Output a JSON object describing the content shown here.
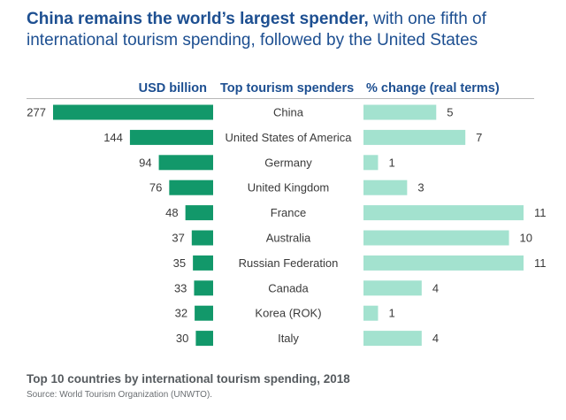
{
  "header": {
    "title_bold": "China remains the world’s largest spender,",
    "title_rest": " with one fifth of international tourism spending, followed by the United States"
  },
  "columns": {
    "spending": "USD billion",
    "country": "Top tourism spenders",
    "change": "% change (real terms)"
  },
  "colors": {
    "spending_bar": "#12986a",
    "change_bar": "#a3e2cf",
    "title": "#1d4f91",
    "text": "#3a3a3a"
  },
  "chart_data": {
    "type": "bar",
    "title": "Top 10 countries by international tourism spending, 2018",
    "categories": [
      "China",
      "United States of America",
      "Germany",
      "United Kingdom",
      "France",
      "Australia",
      "Russian Federation",
      "Canada",
      "Korea (ROK)",
      "Italy"
    ],
    "series": [
      {
        "name": "USD billion",
        "values": [
          277,
          144,
          94,
          76,
          48,
          37,
          35,
          33,
          32,
          30
        ]
      },
      {
        "name": "% change (real terms)",
        "values": [
          5,
          7,
          1,
          3,
          11,
          10,
          11,
          4,
          1,
          4
        ]
      }
    ],
    "xlabel": "",
    "ylabel": "",
    "grid": false,
    "legend": "none"
  },
  "footer": {
    "caption": "Top 10 countries by international tourism spending, 2018",
    "source": "Source: World Tourism Organization (UNWTO)."
  }
}
